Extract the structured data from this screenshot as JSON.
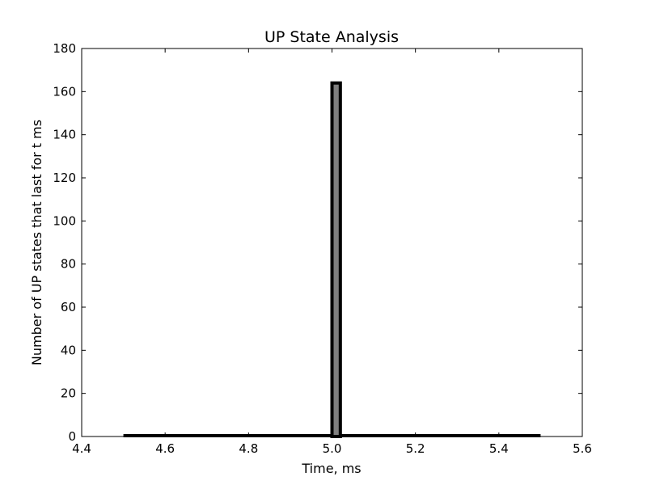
{
  "chart_data": {
    "type": "bar",
    "title": "UP State Analysis",
    "xlabel": "Time, ms",
    "ylabel": "Number of UP states that last for t ms",
    "xlim": [
      4.4,
      5.6
    ],
    "ylim": [
      0,
      180
    ],
    "xticks": [
      4.4,
      4.6,
      4.8,
      5.0,
      5.2,
      5.4,
      5.6
    ],
    "yticks": [
      0,
      20,
      40,
      60,
      80,
      100,
      120,
      140,
      160,
      180
    ],
    "xtick_labels": [
      "4.4",
      "4.6",
      "4.8",
      "5.0",
      "5.2",
      "5.4",
      "5.6"
    ],
    "ytick_labels": [
      "0",
      "20",
      "40",
      "60",
      "80",
      "100",
      "120",
      "140",
      "160",
      "180"
    ],
    "histogram": {
      "range": [
        4.5,
        5.5
      ],
      "bins": [
        {
          "x0": 4.5,
          "x1": 5.0,
          "count": 0
        },
        {
          "x0": 5.0,
          "x1": 5.02,
          "count": 164
        },
        {
          "x0": 5.02,
          "x1": 5.5,
          "count": 0
        }
      ]
    },
    "grid": false,
    "colors": {
      "bar_fill": "#808080",
      "bar_edge": "#000000",
      "axes": "#000000"
    }
  }
}
